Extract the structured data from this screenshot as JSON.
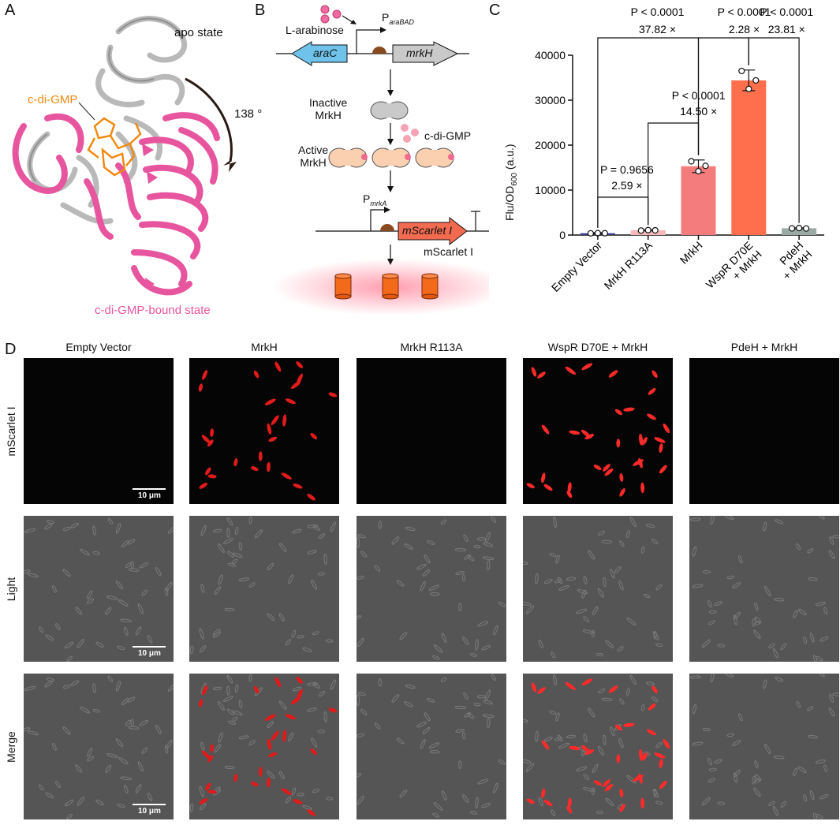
{
  "panels": {
    "a": "A",
    "b": "B",
    "c": "C",
    "d": "D"
  },
  "panel_a": {
    "apo_label": "apo state",
    "ligand_label": "c-di-GMP",
    "angle_label": "138 °",
    "bound_label": "c-di-GMP-bound state",
    "colors": {
      "apo": "#b9b9b9",
      "bound": "#e8559f",
      "ligand": "#f08a12"
    }
  },
  "panel_b": {
    "inducer": "L-arabinose",
    "promoter1": "P",
    "promoter1_sub": "araBAD",
    "gene1": "araC",
    "gene2": "mrkH",
    "inactive": "Inactive",
    "inactive2": "MrkH",
    "ligand": "c-di-GMP",
    "active": "Active",
    "active2": "MrkH",
    "promoter2": "P",
    "promoter2_sub": "mrkA",
    "reporter_gene": "mScarlet I",
    "reporter_label": "mScarlet I",
    "colors": {
      "araC": "#6fc3ea",
      "mrkH": "#c9c9c9",
      "mScarlet": "#f26a4f",
      "rbs": "#8a4a1f",
      "ligand": "#f6a3b5"
    }
  },
  "chart_data": {
    "type": "bar",
    "ylabel": "Flu/OD600 (a.u.)",
    "ylabel_main": "Flu/OD",
    "ylabel_sub": "600",
    "ylabel_unit": " (a.u.)",
    "ylim": [
      0,
      40000
    ],
    "yticks": [
      "0",
      "10000",
      "20000",
      "30000",
      "40000"
    ],
    "categories": [
      "Empty Vector",
      "MrkH R113A",
      "MrkH",
      "WspR D70E + MrkH",
      "PdeH + MrkH"
    ],
    "category_lines": [
      [
        "Empty Vector"
      ],
      [
        "MrkH R113A"
      ],
      [
        "MrkH"
      ],
      [
        "WspR D70E",
        "+ MrkH"
      ],
      [
        "PdeH",
        "+ MrkH"
      ]
    ],
    "values": [
      400,
      1050,
      15300,
      34400,
      1500
    ],
    "errors": [
      150,
      120,
      1400,
      2300,
      130
    ],
    "points": [
      [
        380,
        420,
        400
      ],
      [
        1000,
        1100,
        1050
      ],
      [
        16400,
        14200,
        15400
      ],
      [
        36500,
        32500,
        34400
      ],
      [
        1480,
        1560,
        1460
      ]
    ],
    "colors": [
      "#3a3a8c",
      "#f6b8b8",
      "#f47c7c",
      "#ff6f4e",
      "#9aaba6"
    ],
    "comparisons": [
      {
        "p": "P < 0.0001",
        "fold": "37.82 ×"
      },
      {
        "p": "P < 0.0001",
        "fold": "2.28 ×"
      },
      {
        "p": "P < 0.0001",
        "fold": "23.81 ×"
      },
      {
        "p": "P < 0.0001",
        "fold": "14.50 ×"
      },
      {
        "p": "P = 0.9656",
        "fold": "2.59 ×"
      }
    ]
  },
  "panel_d": {
    "columns": [
      "Empty Vector",
      "MrkH",
      "MrkH R113A",
      "WspR D70E + MrkH",
      "PdeH + MrkH"
    ],
    "rows": [
      "mScarlet I",
      "Light",
      "Merge"
    ],
    "scale_bar": "10 μm"
  }
}
